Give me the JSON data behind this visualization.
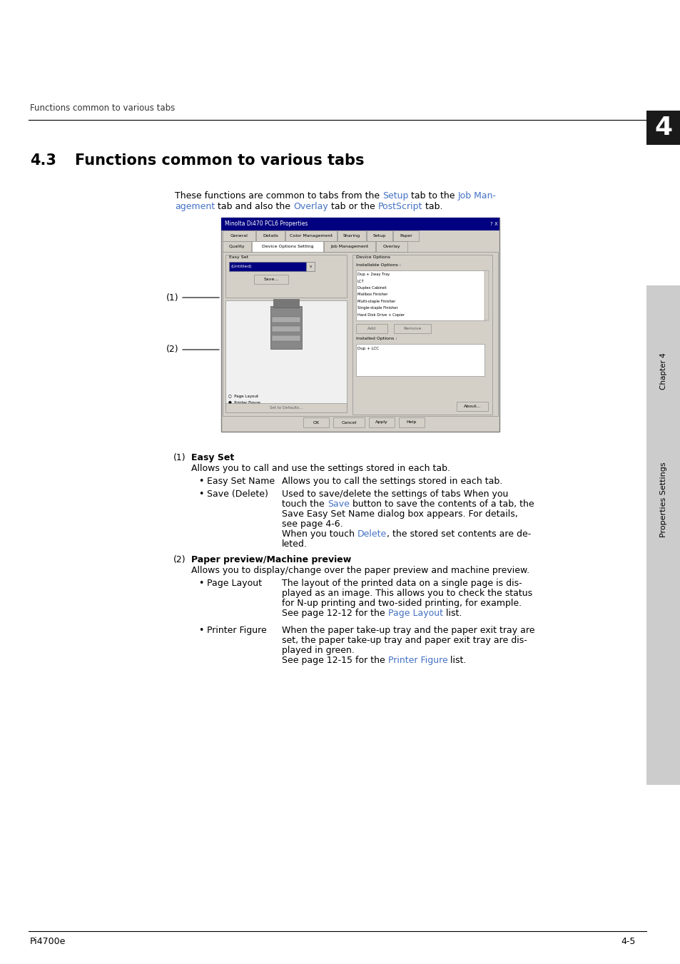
{
  "bg_color": "#ffffff",
  "header_text": "Functions common to various tabs",
  "chapter_number": "4",
  "section_number": "4.3",
  "section_title": "Functions common to various tabs",
  "intro_line1": "These functions are common to tabs from the ",
  "intro_setup": "Setup",
  "intro_line2": " tab to the ",
  "intro_jobman": "Job Man-",
  "intro_line3": "agement",
  "intro_line4": " tab and also the ",
  "intro_overlay": "Overlay",
  "intro_line5": " tab or the ",
  "intro_postscript": "PostScript",
  "intro_line6": " tab.",
  "footer_left": "Pi4700e",
  "footer_right": "4-5",
  "sidebar_text": "Properties Settings",
  "sidebar_chapter": "Chapter 4",
  "link_color": "#4472C4",
  "text_color": "#000000",
  "item1_label": "(1)",
  "item1_title": "Easy Set",
  "item1_desc": "Allows you to call and use the settings stored in each tab.",
  "item1_sub1_name": "Easy Set Name",
  "item1_sub1_desc": "Allows you to call the settings stored in each tab.",
  "item1_sub2_name": "Save (Delete)",
  "item1_sub2_desc1": "Used to save/delete the settings of tabs When you",
  "item1_sub2_desc2": "touch the ",
  "item1_sub2_save": "Save",
  "item1_sub2_desc3": " button to save the contents of a tab, the",
  "item1_sub2_desc4": "Save Easy Set Name dialog box appears. For details,",
  "item1_sub2_desc5": "see page 4-6.",
  "item1_sub2_desc6": "When you touch ",
  "item1_sub2_delete": "Delete",
  "item1_sub2_desc7": ", the stored set contents are de-",
  "item1_sub2_desc8": "leted.",
  "item2_label": "(2)",
  "item2_title": "Paper preview/Machine preview",
  "item2_desc": "Allows you to display/change over the paper preview and machine preview.",
  "item2_sub1_name": "Page Layout",
  "item2_sub1_desc1": "The layout of the printed data on a single page is dis-",
  "item2_sub1_desc2": "played as an image. This allows you to check the status",
  "item2_sub1_desc3": "for N-up printing and two-sided printing, for example.",
  "item2_sub1_desc4": "See page 12-12 for the ",
  "item2_sub1_pagelayout": "Page Layout",
  "item2_sub1_desc5": " list.",
  "item2_sub2_name": "Printer Figure",
  "item2_sub2_desc1": "When the paper take-up tray and the paper exit tray are",
  "item2_sub2_desc2": "set, the paper take-up tray and paper exit tray are dis-",
  "item2_sub2_desc3": "played in green.",
  "item2_sub2_desc4": "See page 12-15 for the ",
  "item2_sub2_printerfig": "Printer Figure",
  "item2_sub2_desc5": " list."
}
